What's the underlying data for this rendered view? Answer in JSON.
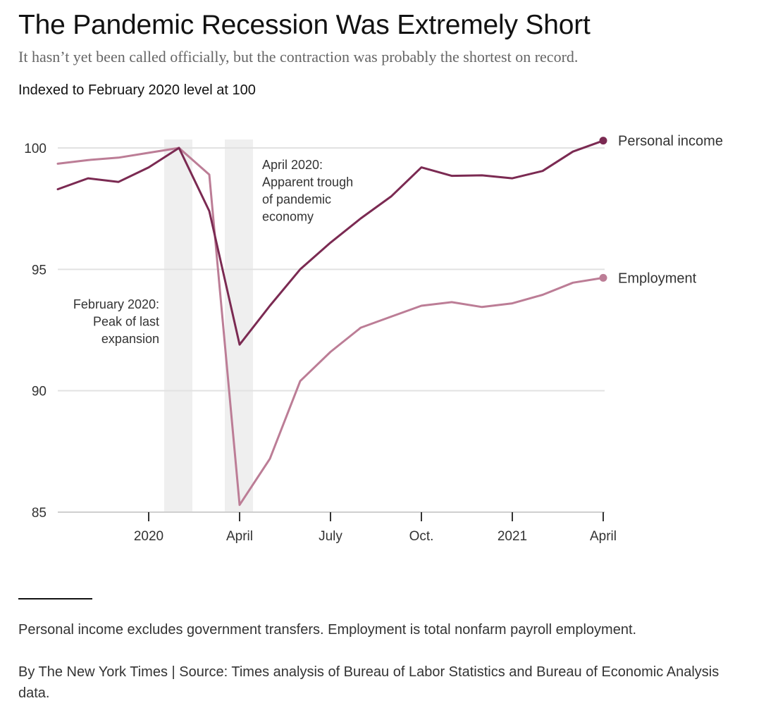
{
  "header": {
    "title": "The Pandemic Recession Was Extremely Short",
    "subtitle": "It hasn’t yet been called officially, but the contraction was probably the shortest on record.",
    "unit_label": "Indexed to February 2020 level at 100"
  },
  "chart_data": {
    "type": "line",
    "ylim": [
      85,
      100
    ],
    "y_ticks": [
      100,
      95,
      90,
      85
    ],
    "x_tick_labels": [
      "2020",
      "April",
      "July",
      "Oct.",
      "2021",
      "April"
    ],
    "x_tick_months": [
      "2020-01",
      "2020-04",
      "2020-07",
      "2020-10",
      "2021-01",
      "2021-04"
    ],
    "x": [
      "2019-10",
      "2019-11",
      "2019-12",
      "2020-01",
      "2020-02",
      "2020-03",
      "2020-04",
      "2020-05",
      "2020-06",
      "2020-07",
      "2020-08",
      "2020-09",
      "2020-10",
      "2020-11",
      "2020-12",
      "2021-01",
      "2021-02",
      "2021-03",
      "2021-04"
    ],
    "series": [
      {
        "name": "Personal income",
        "color": "#7b2a52",
        "values": [
          98.3,
          98.75,
          98.6,
          99.2,
          100.0,
          97.4,
          91.9,
          93.5,
          95.0,
          96.1,
          97.1,
          98.0,
          99.2,
          98.85,
          98.87,
          98.75,
          99.05,
          99.85,
          100.3
        ]
      },
      {
        "name": "Employment",
        "color": "#bc7d96",
        "values": [
          99.35,
          99.5,
          99.6,
          99.8,
          100.0,
          98.9,
          85.3,
          87.2,
          90.4,
          91.6,
          92.6,
          93.05,
          93.5,
          93.65,
          93.45,
          93.6,
          93.95,
          94.45,
          94.65
        ]
      }
    ],
    "shaded_bands": [
      {
        "start": "2020-02",
        "end": "2020-02"
      },
      {
        "start": "2020-04",
        "end": "2020-04"
      }
    ],
    "annotations": [
      {
        "lines": [
          "April 2020:",
          "Apparent trough",
          "of pandemic",
          "economy"
        ]
      },
      {
        "lines": [
          "February 2020:",
          "Peak of last",
          "expansion"
        ]
      }
    ],
    "grid": true,
    "legend": "inline-right"
  },
  "footer": {
    "note": "Personal income excludes government transfers. Employment is total nonfarm payroll employment.",
    "credit": "By The New York Times | Source: Times analysis of Bureau of Labor Statistics and Bureau of Economic Analysis data."
  }
}
